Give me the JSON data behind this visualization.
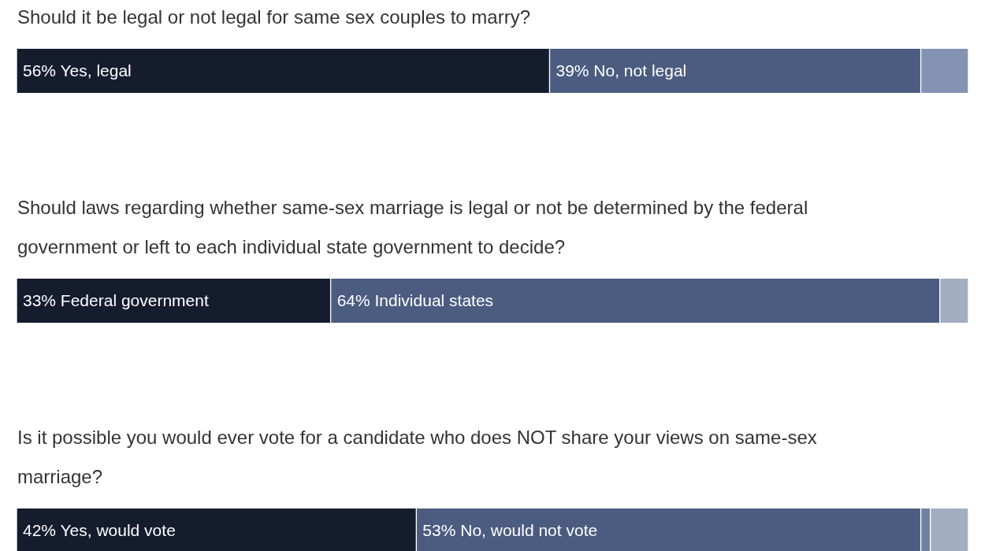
{
  "chart_data": {
    "type": "bar",
    "orientation": "horizontal",
    "stacked": true,
    "categories": [
      "Should it be legal or not legal for same sex couples to marry?",
      "Should laws regarding whether same-sex marriage is legal or not be determined by the federal government or left to each individual state government to decide?",
      "Is it possible you would ever vote for a candidate who does NOT share your views on same-sex marriage?"
    ],
    "xlim": [
      0,
      100
    ],
    "series": [
      {
        "color": "#151c2e",
        "values": [
          56,
          33,
          42
        ],
        "value_labels": [
          "56% Yes, legal",
          "33% Federal government",
          "42% Yes, would vote"
        ]
      },
      {
        "color": "#4b5c80",
        "values": [
          39,
          64,
          53
        ],
        "value_labels": [
          "39% No, not legal",
          "64% Individual states",
          "53% No, would not vote"
        ]
      },
      {
        "colors": [
          "#8593b2",
          "#a3adc2",
          "#6f80a3"
        ],
        "values": [
          5,
          3,
          1
        ]
      },
      {
        "color": "#a3adc2",
        "values": [
          null,
          null,
          4
        ]
      }
    ]
  }
}
